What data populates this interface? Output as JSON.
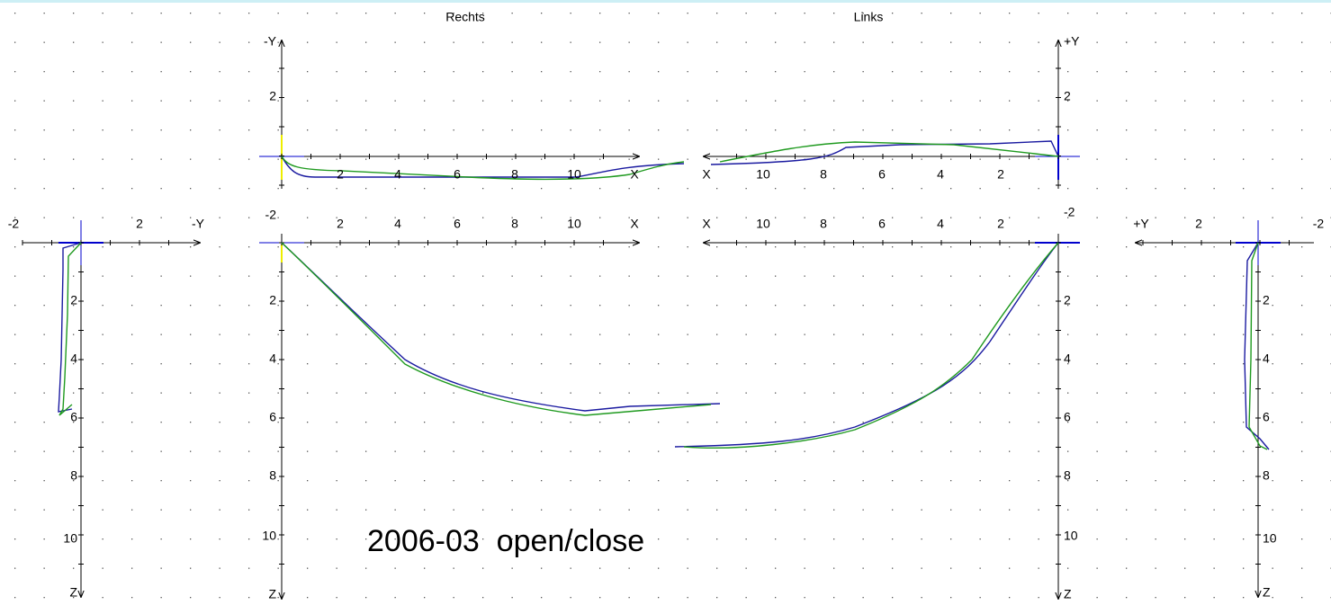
{
  "titles": {
    "right": "Rechts",
    "left": "Links"
  },
  "annotation": "2006-03  open/close",
  "left_panel": {
    "y_labels": [
      "-2",
      "2",
      "-Y"
    ],
    "z_labels": [
      "2",
      "4",
      "6",
      "8",
      "10",
      "Z"
    ]
  },
  "top_panel": {
    "y_left": [
      "-Y",
      "2",
      "-2"
    ],
    "y_right": [
      "+Y",
      "2",
      "-2"
    ],
    "x_right_side": [
      "2",
      "4",
      "6",
      "8",
      "10",
      "X"
    ],
    "x_left_side": [
      "X",
      "10",
      "8",
      "6",
      "4",
      "2"
    ]
  },
  "bottom_panel": {
    "x_right_side": [
      "2",
      "4",
      "6",
      "8",
      "10",
      "X"
    ],
    "x_left_side": [
      "X",
      "10",
      "8",
      "6",
      "4",
      "2"
    ],
    "z_left": [
      "2",
      "4",
      "6",
      "8",
      "10",
      "Z"
    ],
    "z_right": [
      "2",
      "4",
      "6",
      "8",
      "10",
      "Z"
    ]
  },
  "right_panel": {
    "y_labels": [
      "+Y",
      "2",
      "-2"
    ],
    "z_labels": [
      "2",
      "4",
      "6",
      "8",
      "10",
      "Z"
    ]
  }
}
